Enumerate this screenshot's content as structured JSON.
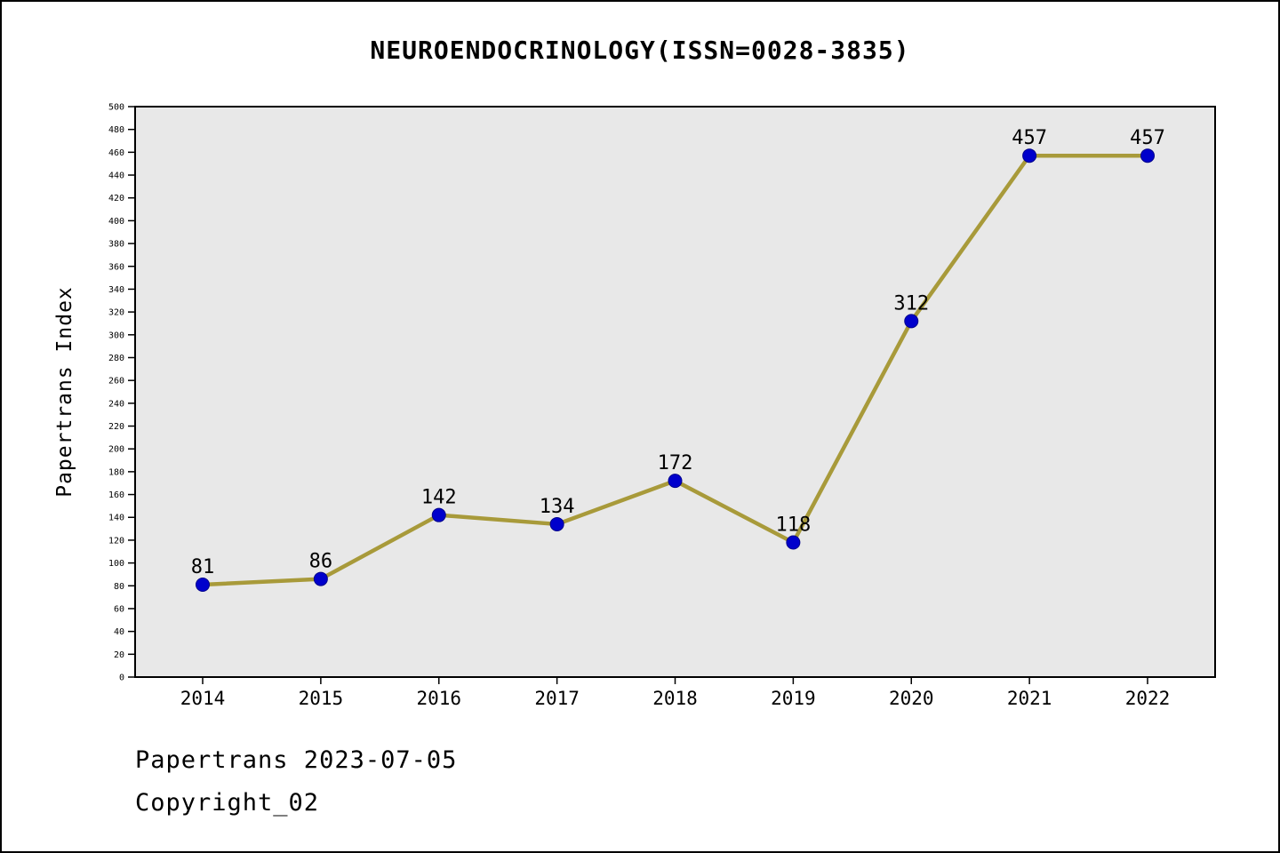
{
  "title": "NEUROENDOCRINOLOGY(ISSN=0028-3835)",
  "footer": {
    "date_line": "Papertrans 2023-07-05",
    "copyright_line": "Copyright_02"
  },
  "chart_data": {
    "type": "line",
    "title": "NEUROENDOCRINOLOGY(ISSN=0028-3835)",
    "categories": [
      "2014",
      "2015",
      "2016",
      "2017",
      "2018",
      "2019",
      "2020",
      "2021",
      "2022"
    ],
    "values": [
      81,
      86,
      142,
      134,
      172,
      118,
      312,
      457,
      457
    ],
    "xlabel": "",
    "ylabel": "Papertrans Index",
    "ylim": [
      0,
      500
    ],
    "ytick_step": 20,
    "grid": false,
    "legend": "none",
    "line_color": "#a89a3a",
    "marker_color": "#0000cc",
    "marker_edge_color": "#00008b",
    "plot_bg": "#e8e8e8",
    "axis_color": "#000000"
  }
}
